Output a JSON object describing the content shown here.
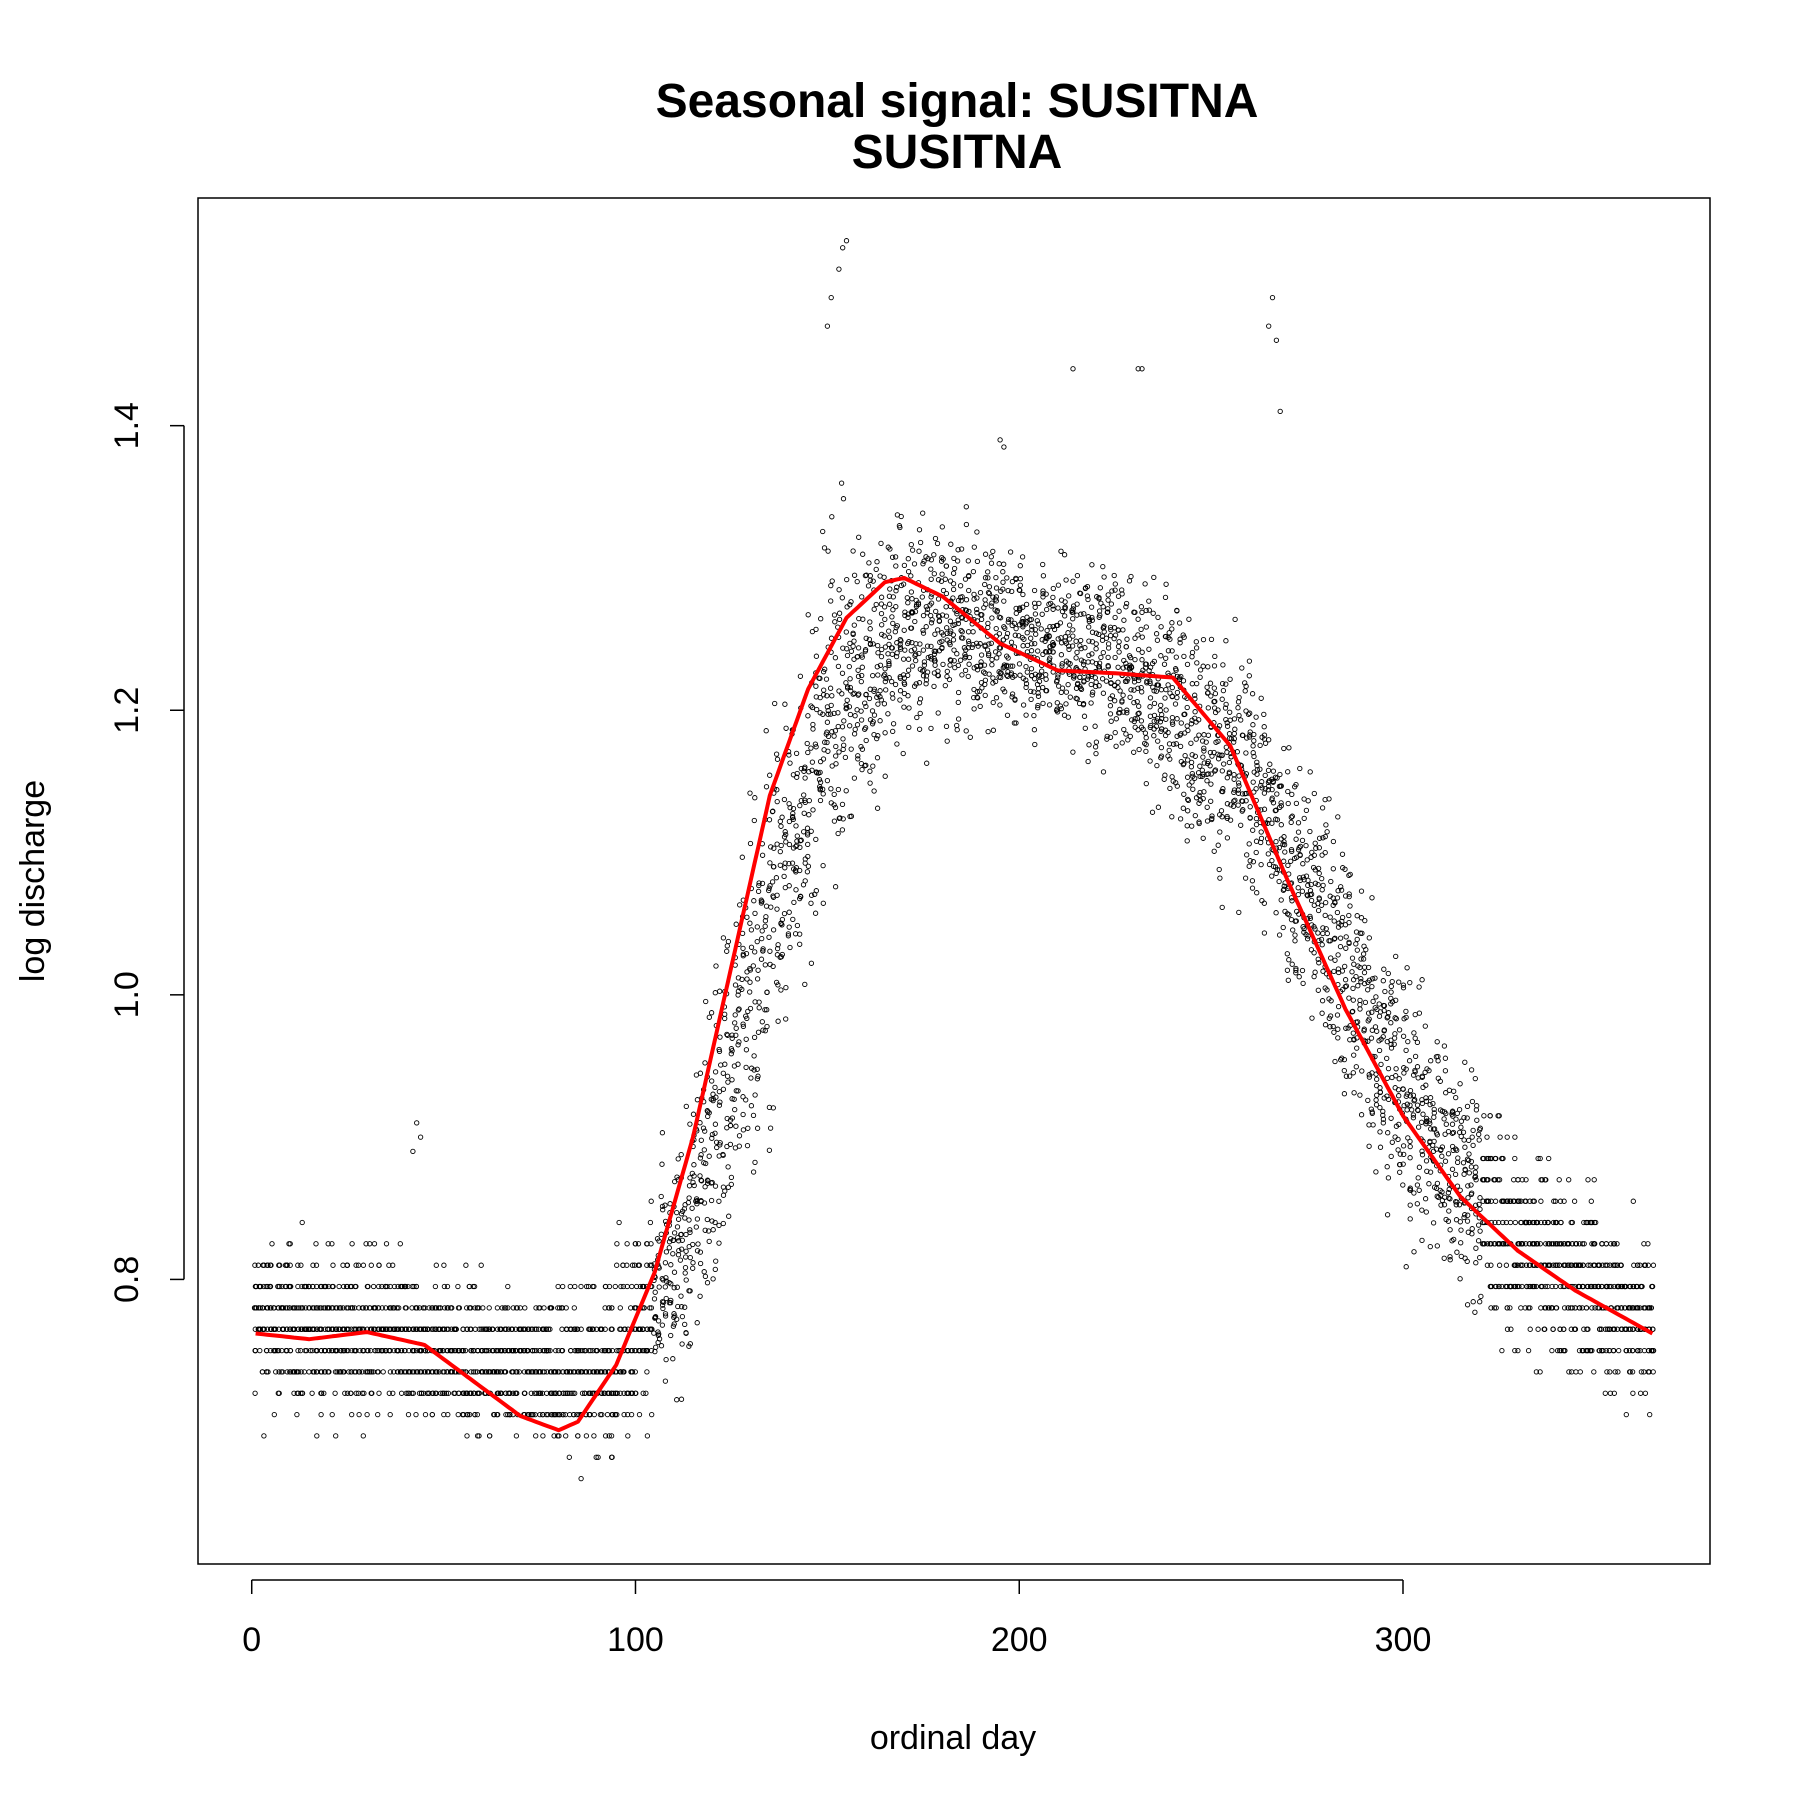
{
  "chart_data": {
    "type": "scatter",
    "title": "Seasonal signal: SUSITNA",
    "subtitle": "SUSITNA",
    "xlabel": "ordinal day",
    "ylabel": "log discharge",
    "xlim": [
      -14,
      380
    ],
    "ylim": [
      0.6,
      1.56
    ],
    "x_ticks": [
      0,
      100,
      200,
      300
    ],
    "y_ticks": [
      0.8,
      1.0,
      1.2,
      1.4
    ],
    "x_tick_labels": [
      "0",
      "100",
      "200",
      "300"
    ],
    "y_tick_labels": [
      "0.8",
      "1.0",
      "1.2",
      "1.4"
    ],
    "grid": false,
    "legend": "none",
    "point_color": "#000000",
    "line_color": "#ff0000",
    "series": [
      {
        "type": "line",
        "x": [
          1,
          15,
          30,
          45,
          60,
          70,
          80,
          85,
          95,
          105,
          115,
          125,
          135,
          145,
          155,
          165,
          170,
          180,
          195,
          210,
          225,
          240,
          255,
          270,
          285,
          300,
          315,
          330,
          345,
          365
        ],
        "y": [
          0.762,
          0.758,
          0.763,
          0.754,
          0.724,
          0.704,
          0.694,
          0.7,
          0.74,
          0.805,
          0.9,
          1.02,
          1.14,
          1.215,
          1.265,
          1.29,
          1.293,
          1.28,
          1.247,
          1.228,
          1.226,
          1.223,
          1.175,
          1.08,
          0.99,
          0.915,
          0.858,
          0.82,
          0.792,
          0.762
        ]
      }
    ],
    "scatter_summary": {
      "description_x": [
        1,
        30,
        60,
        90,
        110,
        130,
        150,
        170,
        200,
        230,
        260,
        280,
        300,
        330,
        365
      ],
      "center_y": [
        0.77,
        0.76,
        0.745,
        0.735,
        0.8,
        1.0,
        1.2,
        1.26,
        1.25,
        1.23,
        1.15,
        1.05,
        0.93,
        0.82,
        0.77
      ],
      "spread_y": [
        0.05,
        0.05,
        0.04,
        0.05,
        0.07,
        0.12,
        0.1,
        0.07,
        0.05,
        0.06,
        0.07,
        0.08,
        0.08,
        0.06,
        0.05
      ]
    },
    "outliers": {
      "x": [
        150,
        151,
        153,
        154,
        155,
        265,
        266,
        267,
        268,
        42,
        43,
        44,
        231,
        232,
        214,
        195,
        196
      ],
      "y": [
        1.47,
        1.49,
        1.51,
        1.525,
        1.53,
        1.47,
        1.49,
        1.46,
        1.41,
        0.89,
        0.91,
        0.9,
        1.44,
        1.44,
        1.44,
        1.39,
        1.385
      ]
    }
  }
}
